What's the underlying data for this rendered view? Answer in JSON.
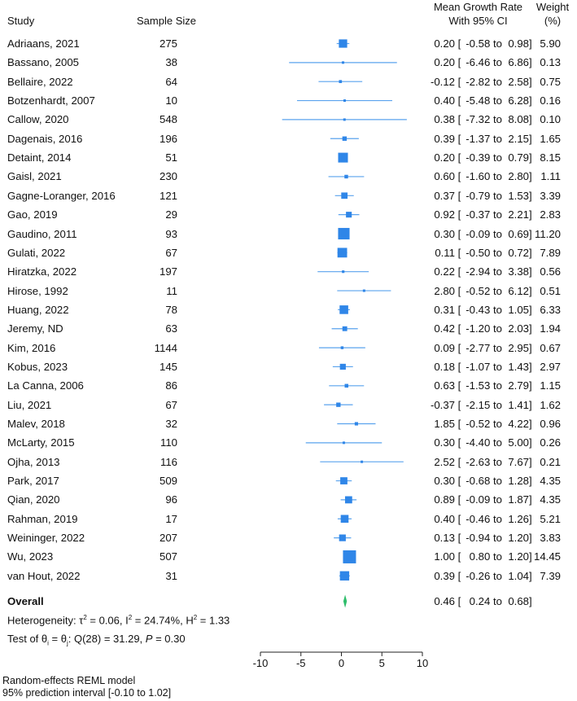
{
  "headers": {
    "study": "Study",
    "sample_size": "Sample Size",
    "effect_line1": "Mean Growth Rate",
    "effect_line2": "With 95% CI",
    "weight_line1": "Weight",
    "weight_line2": "(%)"
  },
  "chart_data": {
    "type": "forest",
    "x_ticks": [
      -10,
      -5,
      0,
      5,
      10
    ],
    "xlim": [
      -10,
      10
    ],
    "ci_separator": "to",
    "studies": [
      {
        "name": "Adriaans, 2021",
        "n": "275",
        "mean": 0.2,
        "lo": -0.58,
        "hi": 0.98,
        "est": "0.20",
        "lo_s": "-0.58",
        "hi_s": "0.98",
        "weight": "5.90"
      },
      {
        "name": "Bassano, 2005",
        "n": "38",
        "mean": 0.2,
        "lo": -6.46,
        "hi": 6.86,
        "est": "0.20",
        "lo_s": "-6.46",
        "hi_s": "6.86",
        "weight": "0.13"
      },
      {
        "name": "Bellaire, 2022",
        "n": "64",
        "mean": -0.12,
        "lo": -2.82,
        "hi": 2.58,
        "est": "-0.12",
        "lo_s": "-2.82",
        "hi_s": "2.58",
        "weight": "0.75"
      },
      {
        "name": "Botzenhardt, 2007",
        "n": "10",
        "mean": 0.4,
        "lo": -5.48,
        "hi": 6.28,
        "est": "0.40",
        "lo_s": "-5.48",
        "hi_s": "6.28",
        "weight": "0.16"
      },
      {
        "name": "Callow, 2020",
        "n": "548",
        "mean": 0.38,
        "lo": -7.32,
        "hi": 8.08,
        "est": "0.38",
        "lo_s": "-7.32",
        "hi_s": "8.08",
        "weight": "0.10"
      },
      {
        "name": "Dagenais, 2016",
        "n": "196",
        "mean": 0.39,
        "lo": -1.37,
        "hi": 2.15,
        "est": "0.39",
        "lo_s": "-1.37",
        "hi_s": "2.15",
        "weight": "1.65"
      },
      {
        "name": "Detaint, 2014",
        "n": "51",
        "mean": 0.2,
        "lo": -0.39,
        "hi": 0.79,
        "est": "0.20",
        "lo_s": "-0.39",
        "hi_s": "0.79",
        "weight": "8.15"
      },
      {
        "name": "Gaisl, 2021",
        "n": "230",
        "mean": 0.6,
        "lo": -1.6,
        "hi": 2.8,
        "est": "0.60",
        "lo_s": "-1.60",
        "hi_s": "2.80",
        "weight": "1.11"
      },
      {
        "name": "Gagne-Loranger, 2016",
        "n": "121",
        "mean": 0.37,
        "lo": -0.79,
        "hi": 1.53,
        "est": "0.37",
        "lo_s": "-0.79",
        "hi_s": "1.53",
        "weight": "3.39"
      },
      {
        "name": "Gao, 2019",
        "n": "29",
        "mean": 0.92,
        "lo": -0.37,
        "hi": 2.21,
        "est": "0.92",
        "lo_s": "-0.37",
        "hi_s": "2.21",
        "weight": "2.83"
      },
      {
        "name": "Gaudino, 2011",
        "n": "93",
        "mean": 0.3,
        "lo": -0.09,
        "hi": 0.69,
        "est": "0.30",
        "lo_s": "-0.09",
        "hi_s": "0.69",
        "weight": "11.20"
      },
      {
        "name": "Gulati, 2022",
        "n": "67",
        "mean": 0.11,
        "lo": -0.5,
        "hi": 0.72,
        "est": "0.11",
        "lo_s": "-0.50",
        "hi_s": "0.72",
        "weight": "7.89"
      },
      {
        "name": "Hiratzka, 2022",
        "n": "197",
        "mean": 0.22,
        "lo": -2.94,
        "hi": 3.38,
        "est": "0.22",
        "lo_s": "-2.94",
        "hi_s": "3.38",
        "weight": "0.56"
      },
      {
        "name": "Hirose, 1992",
        "n": "11",
        "mean": 2.8,
        "lo": -0.52,
        "hi": 6.12,
        "est": "2.80",
        "lo_s": "-0.52",
        "hi_s": "6.12",
        "weight": "0.51"
      },
      {
        "name": "Huang, 2022",
        "n": "78",
        "mean": 0.31,
        "lo": -0.43,
        "hi": 1.05,
        "est": "0.31",
        "lo_s": "-0.43",
        "hi_s": "1.05",
        "weight": "6.33"
      },
      {
        "name": "Jeremy, ND",
        "n": "63",
        "mean": 0.42,
        "lo": -1.2,
        "hi": 2.03,
        "est": "0.42",
        "lo_s": "-1.20",
        "hi_s": "2.03",
        "weight": "1.94"
      },
      {
        "name": "Kim, 2016",
        "n": "1144",
        "mean": 0.09,
        "lo": -2.77,
        "hi": 2.95,
        "est": "0.09",
        "lo_s": "-2.77",
        "hi_s": "2.95",
        "weight": "0.67"
      },
      {
        "name": "Kobus, 2023",
        "n": "145",
        "mean": 0.18,
        "lo": -1.07,
        "hi": 1.43,
        "est": "0.18",
        "lo_s": "-1.07",
        "hi_s": "1.43",
        "weight": "2.97"
      },
      {
        "name": "La Canna, 2006",
        "n": "86",
        "mean": 0.63,
        "lo": -1.53,
        "hi": 2.79,
        "est": "0.63",
        "lo_s": "-1.53",
        "hi_s": "2.79",
        "weight": "1.15"
      },
      {
        "name": "Liu, 2021",
        "n": "67",
        "mean": -0.37,
        "lo": -2.15,
        "hi": 1.41,
        "est": "-0.37",
        "lo_s": "-2.15",
        "hi_s": "1.41",
        "weight": "1.62"
      },
      {
        "name": "Malev, 2018",
        "n": "32",
        "mean": 1.85,
        "lo": -0.52,
        "hi": 4.22,
        "est": "1.85",
        "lo_s": "-0.52",
        "hi_s": "4.22",
        "weight": "0.96"
      },
      {
        "name": "McLarty, 2015",
        "n": "110",
        "mean": 0.3,
        "lo": -4.4,
        "hi": 5.0,
        "est": "0.30",
        "lo_s": "-4.40",
        "hi_s": "5.00",
        "weight": "0.26"
      },
      {
        "name": "Ojha, 2013",
        "n": "116",
        "mean": 2.52,
        "lo": -2.63,
        "hi": 7.67,
        "est": "2.52",
        "lo_s": "-2.63",
        "hi_s": "7.67",
        "weight": "0.21"
      },
      {
        "name": "Park, 2017",
        "n": "509",
        "mean": 0.3,
        "lo": -0.68,
        "hi": 1.28,
        "est": "0.30",
        "lo_s": "-0.68",
        "hi_s": "1.28",
        "weight": "4.35"
      },
      {
        "name": "Qian, 2020",
        "n": "96",
        "mean": 0.89,
        "lo": -0.09,
        "hi": 1.87,
        "est": "0.89",
        "lo_s": "-0.09",
        "hi_s": "1.87",
        "weight": "4.35"
      },
      {
        "name": "Rahman, 2019",
        "n": "17",
        "mean": 0.4,
        "lo": -0.46,
        "hi": 1.26,
        "est": "0.40",
        "lo_s": "-0.46",
        "hi_s": "1.26",
        "weight": "5.21"
      },
      {
        "name": "Weininger, 2022",
        "n": "207",
        "mean": 0.13,
        "lo": -0.94,
        "hi": 1.2,
        "est": "0.13",
        "lo_s": "-0.94",
        "hi_s": "1.20",
        "weight": "3.83"
      },
      {
        "name": "Wu, 2023",
        "n": "507",
        "mean": 1.0,
        "lo": 0.8,
        "hi": 1.2,
        "est": "1.00",
        "lo_s": "0.80",
        "hi_s": "1.20",
        "weight": "14.45"
      },
      {
        "name": "van Hout, 2022",
        "n": "31",
        "mean": 0.39,
        "lo": -0.26,
        "hi": 1.04,
        "est": "0.39",
        "lo_s": "-0.26",
        "hi_s": "1.04",
        "weight": "7.39"
      }
    ],
    "overall": {
      "name": "Overall",
      "mean": 0.46,
      "lo": 0.24,
      "hi": 0.68,
      "est": "0.46",
      "lo_s": "0.24",
      "hi_s": "0.68"
    },
    "colors": {
      "marker": "#2f86e8",
      "ci_line": "#5aa3ee",
      "diamond": "#2ebd6b",
      "axis": "#222222"
    }
  },
  "stats": {
    "heterogeneity": {
      "prefix": "Heterogeneity: ",
      "tau2_label": "τ",
      "tau2_exp": "2",
      "tau2_val": " = 0.06, ",
      "i2_label": "I",
      "i2_exp": "2",
      "i2_val": " = 24.74%, ",
      "h2_label": "H",
      "h2_exp": "2",
      "h2_val": " = 1.33"
    },
    "test": {
      "prefix": "Test of θ",
      "sub1": "i",
      "mid": " = θ",
      "sub2": "j",
      "q": ": Q(28) = 31.29, ",
      "p_label": "P",
      "p_val": " = 0.30"
    }
  },
  "footnote": {
    "line1": "Random-effects REML model",
    "line2": "95% prediction interval [-0.10 to 1.02]"
  }
}
